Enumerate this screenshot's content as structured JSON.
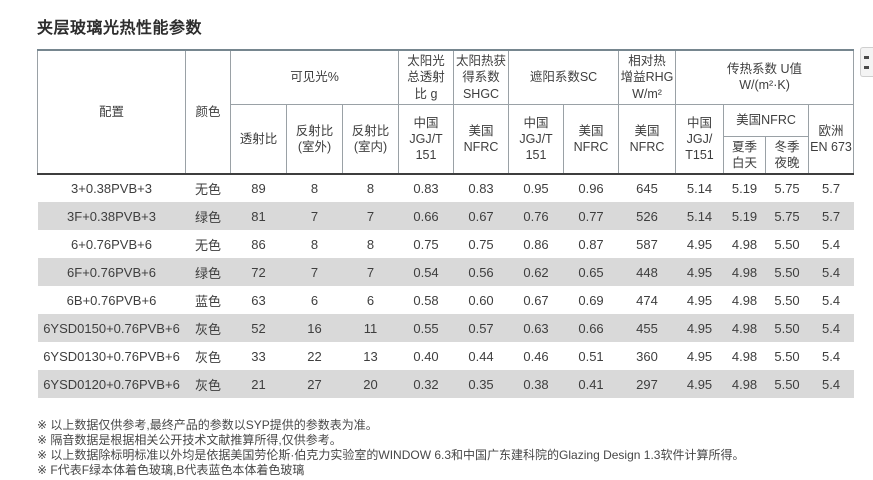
{
  "page": {
    "title": "夹层玻璃光热性能参数"
  },
  "colors": {
    "header_top_border": "#76868f",
    "header_grid_border": "#9aa1a6",
    "header_bottom_border": "#3e3e3e",
    "alt_row_background": "#d9d9d9",
    "text": "#3e3e3e"
  },
  "table": {
    "header": {
      "config": "配置",
      "color": "颜色",
      "visible_light_group": "可见光%",
      "transmittance": "透射比",
      "reflectance_out": "反射比\n(室外)",
      "reflectance_in": "反射比\n(室内)",
      "solar_g_group": "太阳光\n总透射\n比 g",
      "solar_g_std": "中国\nJGJ/T\n151",
      "shgc_group": "太阳热获\n得系数\nSHGC",
      "shgc_std": "美国\nNFRC",
      "sc_group": "遮阳系数SC",
      "sc_china": "中国\nJGJ/T\n151",
      "sc_us": "美国\nNFRC",
      "rhg_group": "相对热\n增益RHG\nW/m²",
      "rhg_std": "美国\nNFRC",
      "u_group": "传热系数 U值\nW/(m²·K)",
      "u_china": "中国\nJGJ/\nT151",
      "u_us_group": "美国NFRC",
      "u_us_summer": "夏季\n白天",
      "u_us_winter": "冬季\n夜晚",
      "u_europe": "欧洲\nEN 673"
    },
    "rows": [
      [
        "3+0.38PVB+3",
        "无色",
        "89",
        "8",
        "8",
        "0.83",
        "0.83",
        "0.95",
        "0.96",
        "645",
        "5.14",
        "5.19",
        "5.75",
        "5.7"
      ],
      [
        "3F+0.38PVB+3",
        "绿色",
        "81",
        "7",
        "7",
        "0.66",
        "0.67",
        "0.76",
        "0.77",
        "526",
        "5.14",
        "5.19",
        "5.75",
        "5.7"
      ],
      [
        "6+0.76PVB+6",
        "无色",
        "86",
        "8",
        "8",
        "0.75",
        "0.75",
        "0.86",
        "0.87",
        "587",
        "4.95",
        "4.98",
        "5.50",
        "5.4"
      ],
      [
        "6F+0.76PVB+6",
        "绿色",
        "72",
        "7",
        "7",
        "0.54",
        "0.56",
        "0.62",
        "0.65",
        "448",
        "4.95",
        "4.98",
        "5.50",
        "5.4"
      ],
      [
        "6B+0.76PVB+6",
        "蓝色",
        "63",
        "6",
        "6",
        "0.58",
        "0.60",
        "0.67",
        "0.69",
        "474",
        "4.95",
        "4.98",
        "5.50",
        "5.4"
      ],
      [
        "6YSD0150+0.76PVB+6",
        "灰色",
        "52",
        "16",
        "11",
        "0.55",
        "0.57",
        "0.63",
        "0.66",
        "455",
        "4.95",
        "4.98",
        "5.50",
        "5.4"
      ],
      [
        "6YSD0130+0.76PVB+6",
        "灰色",
        "33",
        "22",
        "13",
        "0.40",
        "0.44",
        "0.46",
        "0.51",
        "360",
        "4.95",
        "4.98",
        "5.50",
        "5.4"
      ],
      [
        "6YSD0120+0.76PVB+6",
        "灰色",
        "21",
        "27",
        "20",
        "0.32",
        "0.35",
        "0.38",
        "0.41",
        "297",
        "4.95",
        "4.98",
        "5.50",
        "5.4"
      ]
    ]
  },
  "footnotes": [
    "※ 以上数据仅供参考,最终产品的参数以SYP提供的参数表为准。",
    "※ 隔音数据是根据相关公开技术文献推算所得,仅供参考。",
    "※ 以上数据除标明标准以外均是依据美国劳伦斯·伯克力实验室的WINDOW 6.3和中国广东建科院的Glazing Design 1.3软件计算所得。",
    "※ F代表F绿本体着色玻璃,B代表蓝色本体着色玻璃"
  ]
}
